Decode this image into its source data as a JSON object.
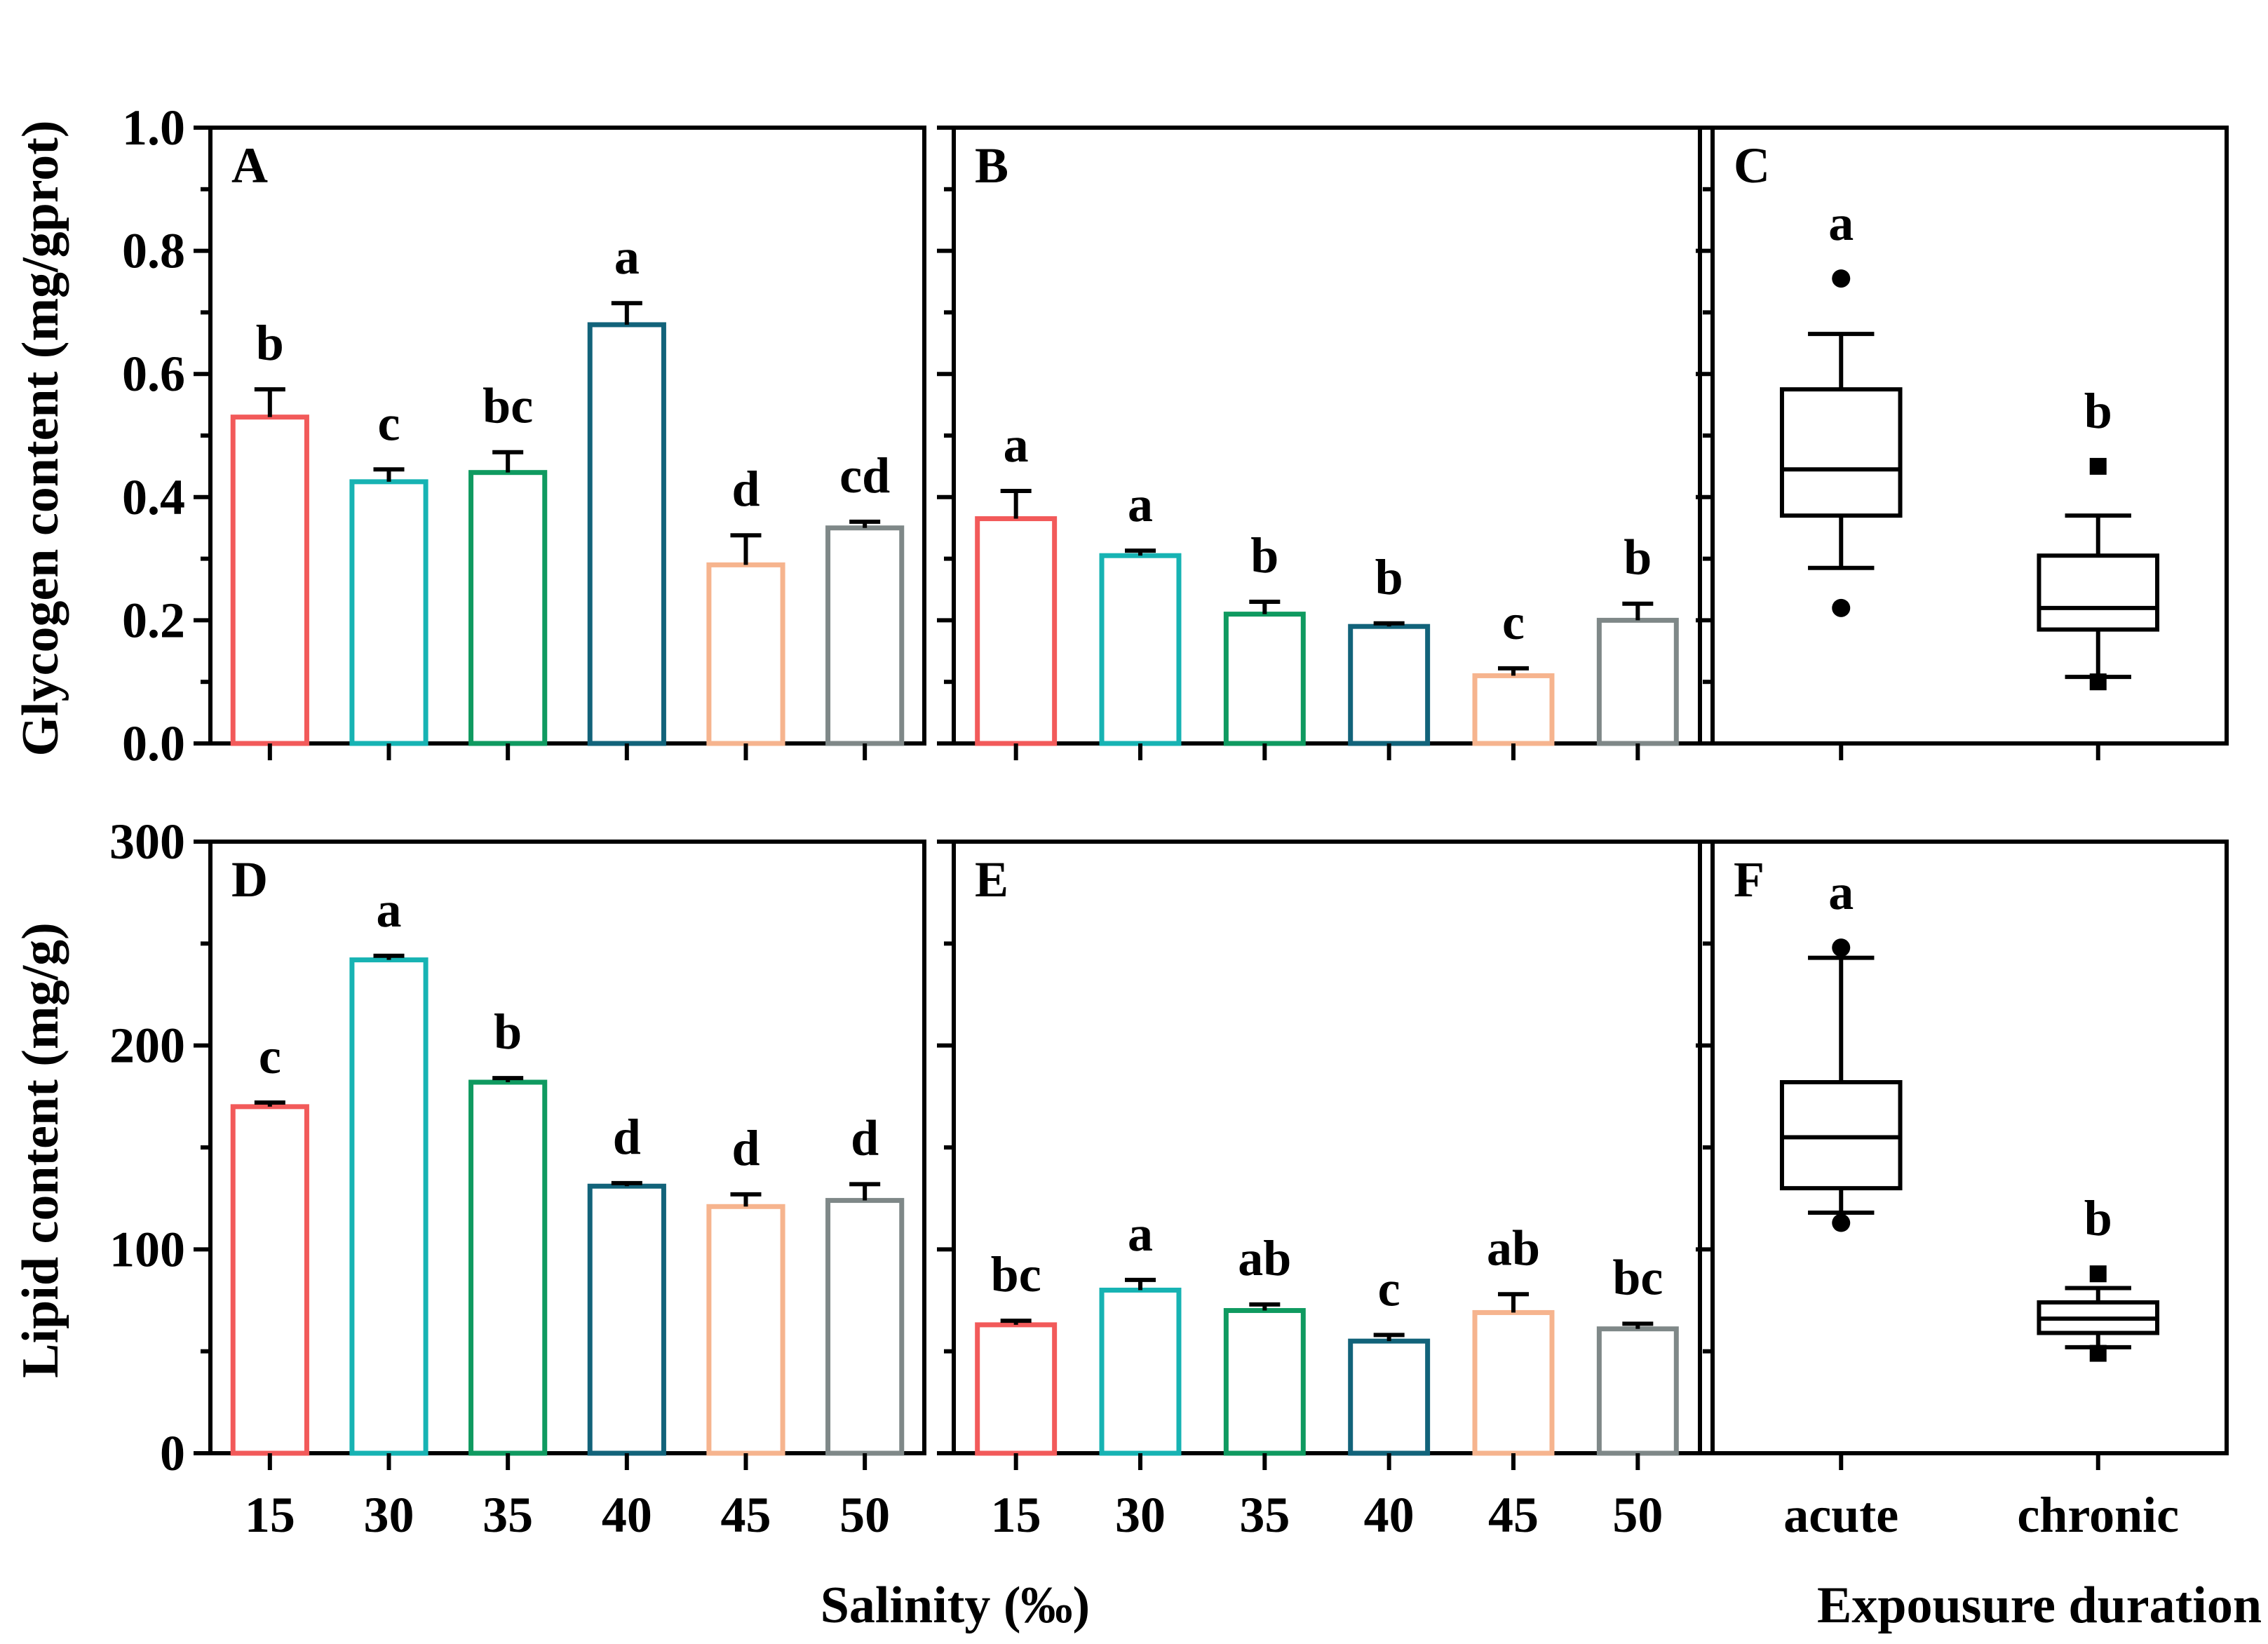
{
  "figure": {
    "colors": [
      "#f25a5a",
      "#17b3b3",
      "#0f9a60",
      "#12637a",
      "#f6b48e",
      "#7f8888"
    ],
    "row_ylabels": [
      "Glycogen content (mg/gprot)",
      "Lipid content (mg/g)"
    ],
    "xlabel_bars": "Salinity (‰)",
    "xlabel_box": "Expousure duration"
  },
  "chart_data": [
    {
      "panel": "A",
      "type": "bar",
      "categories": [
        "15",
        "30",
        "35",
        "40",
        "45",
        "50"
      ],
      "values": [
        0.53,
        0.425,
        0.44,
        0.68,
        0.29,
        0.35
      ],
      "errors": [
        0.045,
        0.02,
        0.033,
        0.035,
        0.048,
        0.01
      ],
      "letters": [
        "b",
        "c",
        "bc",
        "a",
        "d",
        "cd"
      ],
      "ylabel": "Glycogen content (mg/gprot)",
      "ylim": [
        0,
        1.0
      ],
      "yticks": [
        "0.0",
        "0.2",
        "0.4",
        "0.6",
        "0.8",
        "1.0"
      ],
      "xlabel": "Salinity (‰)"
    },
    {
      "panel": "B",
      "type": "bar",
      "categories": [
        "15",
        "30",
        "35",
        "40",
        "45",
        "50"
      ],
      "values": [
        0.365,
        0.305,
        0.21,
        0.19,
        0.11,
        0.2
      ],
      "errors": [
        0.045,
        0.008,
        0.02,
        0.005,
        0.012,
        0.027
      ],
      "letters": [
        "a",
        "a",
        "b",
        "b",
        "c",
        "b"
      ],
      "ylim": [
        0,
        1.0
      ],
      "xlabel": "Salinity (‰)"
    },
    {
      "panel": "C",
      "type": "box",
      "categories": [
        "acute",
        "chronic"
      ],
      "boxes": [
        {
          "whisker_low": 0.285,
          "q1": 0.37,
          "median": 0.445,
          "q3": 0.575,
          "whisker_high": 0.665,
          "outliers": [
            0.755,
            0.22
          ]
        },
        {
          "whisker_low": 0.108,
          "q1": 0.185,
          "median": 0.22,
          "q3": 0.305,
          "whisker_high": 0.37,
          "outliers": [
            0.45,
            0.1
          ]
        }
      ],
      "letters": [
        "a",
        "b"
      ],
      "ylim": [
        0,
        1.0
      ],
      "xlabel": "Expousure duration"
    },
    {
      "panel": "D",
      "type": "bar",
      "categories": [
        "15",
        "30",
        "35",
        "40",
        "45",
        "50"
      ],
      "values": [
        170,
        242,
        182,
        131,
        121,
        124
      ],
      "errors": [
        2,
        2,
        2,
        1.5,
        6,
        8
      ],
      "letters": [
        "c",
        "a",
        "b",
        "d",
        "d",
        "d"
      ],
      "ylabel": "Lipid content (mg/g)",
      "ylim": [
        0,
        300
      ],
      "yticks": [
        "0",
        "100",
        "200",
        "300"
      ],
      "xlabel": "Salinity (‰)"
    },
    {
      "panel": "E",
      "type": "bar",
      "categories": [
        "15",
        "30",
        "35",
        "40",
        "45",
        "50"
      ],
      "values": [
        63,
        80,
        70,
        55,
        69,
        61
      ],
      "errors": [
        2,
        5,
        3,
        3,
        9,
        2.5
      ],
      "letters": [
        "bc",
        "a",
        "ab",
        "c",
        "ab",
        "bc"
      ],
      "ylim": [
        0,
        300
      ],
      "xlabel": "Salinity (‰)"
    },
    {
      "panel": "F",
      "type": "box",
      "categories": [
        "acute",
        "chronic"
      ],
      "boxes": [
        {
          "whisker_low": 118,
          "q1": 130,
          "median": 155,
          "q3": 182,
          "whisker_high": 243,
          "outliers": [
            248,
            113
          ]
        },
        {
          "whisker_low": 52,
          "q1": 59,
          "median": 66,
          "q3": 74,
          "whisker_high": 81,
          "outliers": [
            88,
            49
          ]
        }
      ],
      "letters": [
        "a",
        "b"
      ],
      "ylim": [
        0,
        300
      ],
      "xlabel": "Expousure duration"
    }
  ]
}
